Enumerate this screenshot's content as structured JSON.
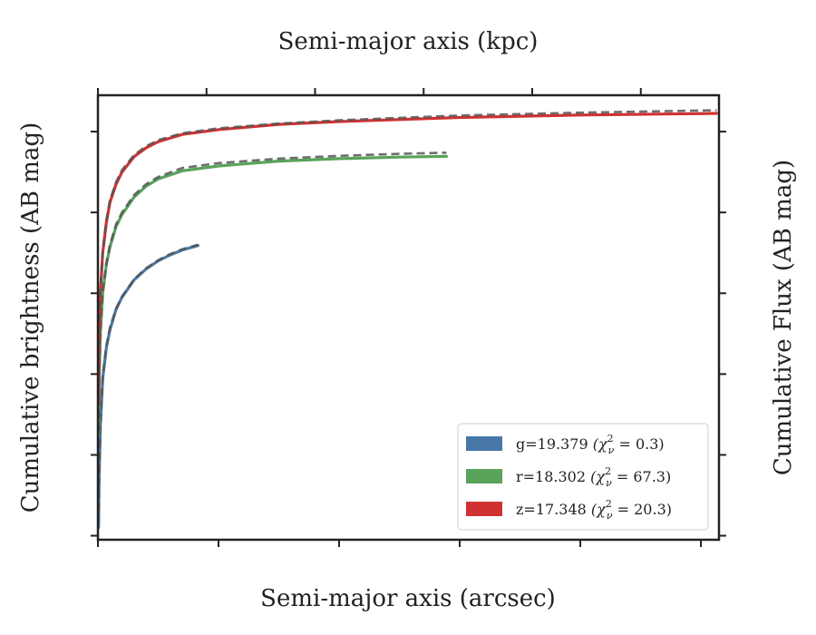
{
  "chart_data": {
    "type": "line",
    "xlabel": "Semi-major axis (arcsec)",
    "top_xlabel": "Semi-major axis (kpc)",
    "ylabel": "Cumulative brightness (AB mag)",
    "right_ylabel": "Cumulative Flux (AB mag)",
    "xlim": [
      0,
      51.5
    ],
    "top_xlim": [
      0,
      286
    ],
    "ylim": [
      28.1,
      17.1
    ],
    "y_inverted": true,
    "x_ticks": [
      "0",
      "10",
      "20",
      "30",
      "40",
      "50"
    ],
    "top_x_ticks": [
      "0",
      "50",
      "100",
      "150",
      "200",
      "250"
    ],
    "y_ticks": [
      "18",
      "20",
      "22",
      "24",
      "26",
      "28"
    ],
    "legend_position": "lower-right",
    "series": [
      {
        "name": "g",
        "legend": "g=19.379",
        "chi_text": "0.3",
        "color": "#4878a8",
        "x": [
          0.05,
          0.1,
          0.2,
          0.4,
          0.7,
          1.0,
          1.5,
          2.0,
          3.0,
          4.0,
          5.0,
          6.0,
          7.0,
          8.3
        ],
        "y": [
          27.8,
          26.6,
          25.3,
          24.1,
          23.35,
          22.9,
          22.4,
          22.1,
          21.67,
          21.4,
          21.2,
          21.05,
          20.93,
          20.82
        ],
        "model_x": [
          0.05,
          0.1,
          0.2,
          0.4,
          0.7,
          1.0,
          1.5,
          2.0,
          3.0,
          4.0,
          5.0,
          6.0,
          7.0,
          8.3
        ],
        "model_y": [
          27.7,
          26.55,
          25.25,
          24.05,
          23.3,
          22.85,
          22.38,
          22.08,
          21.65,
          21.38,
          21.18,
          21.03,
          20.91,
          20.8
        ]
      },
      {
        "name": "r",
        "legend": "r=18.302",
        "chi_text": "67.3",
        "color": "#59a35a",
        "x": [
          0.05,
          0.1,
          0.2,
          0.4,
          0.7,
          1.0,
          1.5,
          2.0,
          3.0,
          4.0,
          5.0,
          7.0,
          10.0,
          15.0,
          20.0,
          25.0,
          28.9
        ],
        "y": [
          25.5,
          24.2,
          23.0,
          22.0,
          21.3,
          20.85,
          20.35,
          20.05,
          19.62,
          19.35,
          19.17,
          18.97,
          18.85,
          18.73,
          18.67,
          18.63,
          18.61
        ],
        "model_x": [
          0.05,
          0.1,
          0.2,
          0.4,
          0.7,
          1.0,
          1.5,
          2.0,
          3.0,
          4.0,
          5.0,
          7.0,
          10.0,
          15.0,
          20.0,
          25.0,
          28.9
        ],
        "model_y": [
          25.4,
          24.15,
          22.95,
          21.95,
          21.25,
          20.8,
          20.3,
          20.0,
          19.57,
          19.3,
          19.12,
          18.9,
          18.78,
          18.67,
          18.6,
          18.55,
          18.52
        ]
      },
      {
        "name": "z",
        "legend": "z=17.348",
        "chi_text": "20.3",
        "color": "#d03232",
        "x": [
          0.05,
          0.1,
          0.2,
          0.4,
          0.7,
          1.0,
          1.5,
          2.0,
          3.0,
          4.0,
          5.0,
          7.0,
          10.0,
          15.0,
          20.0,
          30.0,
          40.0,
          51.3
        ],
        "y": [
          24.7,
          23.3,
          22.0,
          21.0,
          20.25,
          19.75,
          19.3,
          19.0,
          18.62,
          18.4,
          18.25,
          18.07,
          17.95,
          17.82,
          17.75,
          17.65,
          17.59,
          17.55
        ],
        "model_x": [
          0.05,
          0.1,
          0.2,
          0.4,
          0.7,
          1.0,
          1.5,
          2.0,
          3.0,
          4.0,
          5.0,
          7.0,
          10.0,
          15.0,
          20.0,
          30.0,
          40.0,
          51.3
        ],
        "model_y": [
          24.6,
          23.25,
          21.95,
          20.95,
          20.2,
          19.7,
          19.25,
          18.95,
          18.58,
          18.36,
          18.21,
          18.04,
          17.92,
          17.8,
          17.72,
          17.6,
          17.53,
          17.47
        ]
      }
    ]
  }
}
